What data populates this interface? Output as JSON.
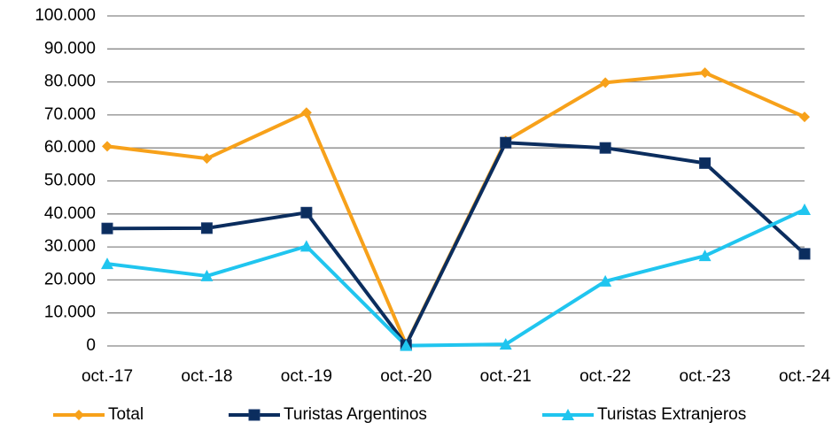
{
  "chart_data": {
    "type": "line",
    "categories": [
      "oct.-17",
      "oct.-18",
      "oct.-19",
      "oct.-20",
      "oct.-21",
      "oct.-22",
      "oct.-23",
      "oct.-24"
    ],
    "series": [
      {
        "name": "Total",
        "color": "#F7A11A",
        "marker": "diamond",
        "values": [
          60500,
          56800,
          70700,
          500,
          62100,
          79800,
          82800,
          69400
        ]
      },
      {
        "name": "Turistas Argentinos",
        "color": "#0B2D5E",
        "marker": "square",
        "values": [
          35600,
          35700,
          40400,
          300,
          61600,
          60000,
          55400,
          27900
        ]
      },
      {
        "name": "Turistas Extranjeros",
        "color": "#20C5EF",
        "marker": "triangle",
        "values": [
          24900,
          21200,
          30200,
          100,
          500,
          19600,
          27300,
          41300
        ]
      }
    ],
    "ylim": [
      0,
      100000
    ],
    "yticks": [
      0,
      {
        "value": 10000,
        "label": "10.000"
      },
      {
        "value": 20000,
        "label": "20.000"
      },
      {
        "value": 30000,
        "label": "30.000"
      },
      {
        "value": 40000,
        "label": "40.000"
      },
      {
        "value": 50000,
        "label": "50.000"
      },
      {
        "value": 60000,
        "label": "60.000"
      },
      {
        "value": 70000,
        "label": "70.000"
      },
      {
        "value": 80000,
        "label": "80.000"
      },
      {
        "value": 90000,
        "label": "90.000"
      },
      {
        "value": 100000,
        "label": "100.000"
      }
    ],
    "grid": true,
    "legend": "bottom"
  }
}
